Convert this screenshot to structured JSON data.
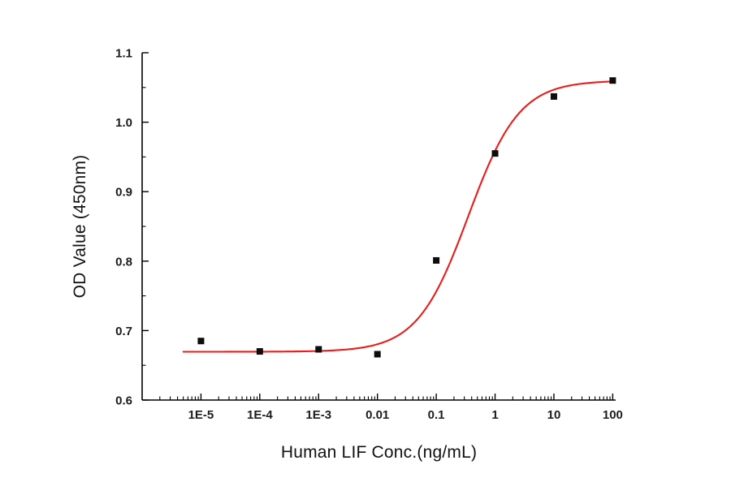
{
  "page": {
    "background": "#ffffff"
  },
  "chart_data": {
    "type": "scatter",
    "title": "",
    "xlabel": "Human LIF Conc.(ng/mL)",
    "ylabel": "OD Value (450nm)",
    "x_scale": "log10",
    "x_domain_log10": [
      -6,
      2.05
    ],
    "y_domain": [
      0.6,
      1.1
    ],
    "grid": false,
    "legend": "none",
    "points": {
      "x": [
        1e-05,
        0.0001,
        0.001,
        0.01,
        0.1,
        1,
        10,
        100
      ],
      "y": [
        0.685,
        0.67,
        0.673,
        0.666,
        0.801,
        0.955,
        1.037,
        1.06
      ]
    },
    "fit_curve": {
      "model": "4PL",
      "bottom": 0.6695,
      "top": 1.06,
      "ec50": 0.35,
      "hill": 1.0,
      "x_start_log10": -5.3,
      "x_end_log10": 2.0
    },
    "x_ticks": [
      {
        "log10": -5,
        "label": "1E-5"
      },
      {
        "log10": -4,
        "label": "1E-4"
      },
      {
        "log10": -3,
        "label": "1E-3"
      },
      {
        "log10": -2,
        "label": "0.01"
      },
      {
        "log10": -1,
        "label": "0.1"
      },
      {
        "log10": 0,
        "label": "1"
      },
      {
        "log10": 1,
        "label": "10"
      },
      {
        "log10": 2,
        "label": "100"
      }
    ],
    "y_ticks": [
      {
        "value": 0.6,
        "label": "0.6"
      },
      {
        "value": 0.7,
        "label": "0.7"
      },
      {
        "value": 0.8,
        "label": "0.8"
      },
      {
        "value": 0.9,
        "label": "0.9"
      },
      {
        "value": 1.0,
        "label": "1.0"
      },
      {
        "value": 1.1,
        "label": "1.1"
      }
    ],
    "y_minor_ticks": [
      0.65,
      0.75,
      0.85,
      0.95,
      1.05
    ],
    "colors": {
      "curve": "#ee1b1b",
      "points": "#0d0d0d",
      "axis": "#000000",
      "tick_text": "#1c1c1c"
    }
  }
}
